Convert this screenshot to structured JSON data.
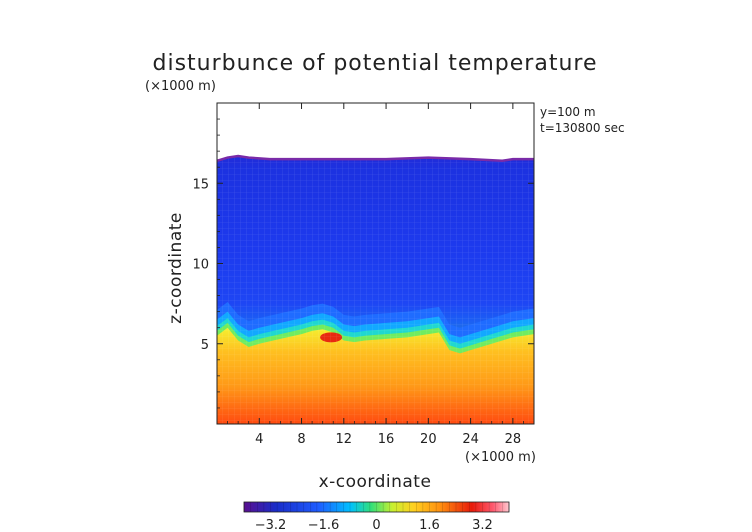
{
  "chart_data": {
    "type": "heatmap",
    "title": "disturbunce of potential temperature",
    "z_unit_label": "(×1000 m)",
    "x_unit_label": "(×1000 m)",
    "xlabel": "x-coordinate",
    "ylabel": "z-coordinate",
    "annotations": [
      "y=100 m",
      "t=130800 sec"
    ],
    "xlim": [
      0,
      30
    ],
    "ylim": [
      0,
      20
    ],
    "x_ticks": [
      4,
      8,
      12,
      16,
      20,
      24,
      28
    ],
    "x_tick_labels": [
      "4",
      "8",
      "12",
      "16",
      "20",
      "24",
      "28"
    ],
    "y_ticks": [
      5,
      10,
      15
    ],
    "y_tick_labels": [
      "5",
      "10",
      "15"
    ],
    "colorbar": {
      "range": [
        -4,
        4
      ],
      "ticks": [
        -3.2,
        -1.6,
        0,
        1.6,
        3.2
      ],
      "tick_labels": [
        "−3.2",
        "−1.6",
        "0",
        "1.6",
        "3.2"
      ],
      "colors": [
        "#4b0082",
        "#1a2cc8",
        "#1f5cff",
        "#00c8ff",
        "#33e07a",
        "#f0ff30",
        "#ffb000",
        "#ff6a1a",
        "#e81a0a",
        "#ffb8c8"
      ]
    },
    "cloud_top_profile": {
      "x": [
        0,
        1,
        2,
        3,
        5,
        8,
        12,
        16,
        20,
        24,
        27,
        28,
        30
      ],
      "z": [
        16.4,
        16.6,
        16.7,
        16.6,
        16.5,
        16.5,
        16.5,
        16.5,
        16.6,
        16.5,
        16.4,
        16.5,
        16.5
      ]
    },
    "interface_profile": {
      "x": [
        0,
        1,
        2,
        3,
        4,
        6,
        8,
        9,
        10,
        11,
        12,
        13,
        14,
        16,
        18,
        20,
        21,
        22,
        23,
        24,
        26,
        28,
        30
      ],
      "z": [
        5.5,
        6.0,
        5.2,
        4.8,
        5.0,
        5.3,
        5.6,
        5.8,
        5.9,
        5.7,
        5.2,
        5.1,
        5.2,
        5.3,
        5.4,
        5.6,
        5.7,
        4.6,
        4.4,
        4.6,
        5.0,
        5.4,
        5.6
      ]
    }
  }
}
